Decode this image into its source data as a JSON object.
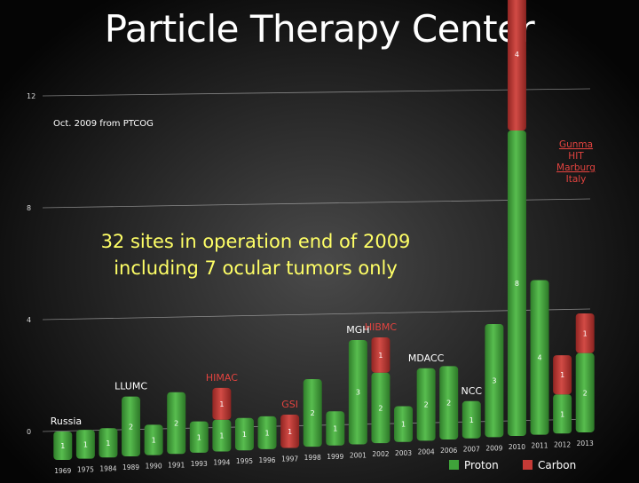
{
  "title": "Particle Therapy Center",
  "chart_data": {
    "type": "bar",
    "stacked": true,
    "source_note": "Oct. 2009 from PTCOG",
    "headline": [
      "32 sites in operation end of 2009",
      "including 7 ocular tumors only"
    ],
    "ylim": [
      0,
      12
    ],
    "yticks": [
      0,
      4,
      8,
      12
    ],
    "categories": [
      "1969",
      "1975",
      "1984",
      "1989",
      "1990",
      "1991",
      "1993",
      "1994",
      "1995",
      "1996",
      "1997",
      "1998",
      "1999",
      "2001",
      "2002",
      "2003",
      "2004",
      "2006",
      "2007",
      "2009",
      "2010",
      "2011",
      "2012",
      "2013"
    ],
    "series": [
      {
        "name": "Proton",
        "color": "#3fa33a",
        "values": [
          1,
          1,
          1,
          2,
          1,
          2,
          1,
          1,
          1,
          1,
          0,
          2,
          1,
          3,
          2,
          1,
          2,
          2,
          1,
          3,
          8,
          4,
          1,
          2
        ]
      },
      {
        "name": "Carbon",
        "color": "#c53a36",
        "values": [
          0,
          0,
          0,
          0,
          0,
          0,
          0,
          1,
          0,
          0,
          1,
          0,
          0,
          0,
          1,
          0,
          0,
          0,
          0,
          0,
          4,
          0,
          1,
          1
        ]
      }
    ],
    "annotations": [
      {
        "text": "Russia",
        "category": "1969",
        "color": "#ffffff"
      },
      {
        "text": "LLUMC",
        "category": "1989",
        "color": "#ffffff"
      },
      {
        "text": "HIMAC",
        "category": "1994",
        "color": "#e2433f"
      },
      {
        "text": "GSI",
        "category": "1997",
        "color": "#e2433f"
      },
      {
        "text": "MGH",
        "category": "2001",
        "color": "#ffffff"
      },
      {
        "text": "HIBMC",
        "category": "2002",
        "color": "#e2433f"
      },
      {
        "text": "MDACC",
        "category": "2004",
        "color": "#ffffff"
      },
      {
        "text": "NCC",
        "category": "2007",
        "color": "#ffffff"
      }
    ],
    "stack_label": [
      "Gunma",
      "HIT",
      "Marburg",
      "Italy"
    ],
    "stack_label_color": "#e2433f",
    "legend_position": "bottom-right"
  }
}
